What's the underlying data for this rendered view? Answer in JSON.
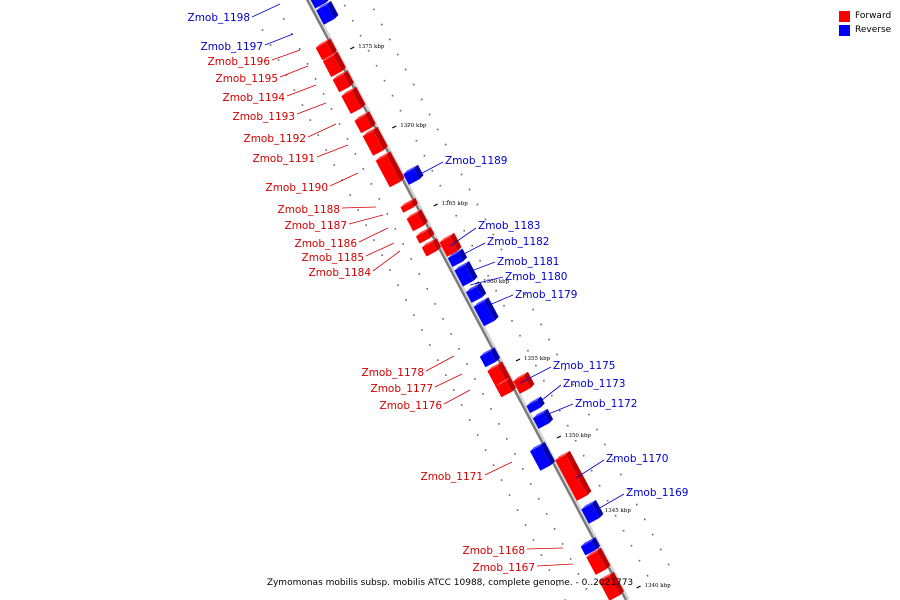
{
  "legend": {
    "forward_label": "Forward",
    "reverse_label": "Reverse",
    "forward_color": "#ff0000",
    "reverse_color": "#0000ff"
  },
  "footer": "Zymomonas mobilis subsp. mobilis ATCC 10988, complete genome. - 0..2021773",
  "ticks": [
    "1375 kbp",
    "1370 kbp",
    "1365 kbp",
    "1360 kbp",
    "1355 kbp",
    "1350 kbp",
    "1345 kbp",
    "1340 kbp"
  ],
  "genes": [
    {
      "name": "Zmob_1198",
      "strand": "reverse"
    },
    {
      "name": "Zmob_1197",
      "strand": "reverse"
    },
    {
      "name": "Zmob_1196",
      "strand": "forward"
    },
    {
      "name": "Zmob_1195",
      "strand": "forward"
    },
    {
      "name": "Zmob_1194",
      "strand": "forward"
    },
    {
      "name": "Zmob_1193",
      "strand": "forward"
    },
    {
      "name": "Zmob_1192",
      "strand": "forward"
    },
    {
      "name": "Zmob_1191",
      "strand": "forward"
    },
    {
      "name": "Zmob_1190",
      "strand": "forward"
    },
    {
      "name": "Zmob_1189",
      "strand": "reverse"
    },
    {
      "name": "Zmob_1188",
      "strand": "forward"
    },
    {
      "name": "Zmob_1187",
      "strand": "forward"
    },
    {
      "name": "Zmob_1186",
      "strand": "forward"
    },
    {
      "name": "Zmob_1185",
      "strand": "forward"
    },
    {
      "name": "Zmob_1184",
      "strand": "forward"
    },
    {
      "name": "Zmob_1183",
      "strand": "reverse"
    },
    {
      "name": "Zmob_1182",
      "strand": "reverse"
    },
    {
      "name": "Zmob_1181",
      "strand": "reverse"
    },
    {
      "name": "Zmob_1180",
      "strand": "reverse"
    },
    {
      "name": "Zmob_1179",
      "strand": "reverse"
    },
    {
      "name": "Zmob_1178",
      "strand": "forward"
    },
    {
      "name": "Zmob_1177",
      "strand": "forward"
    },
    {
      "name": "Zmob_1176",
      "strand": "forward"
    },
    {
      "name": "Zmob_1175",
      "strand": "reverse"
    },
    {
      "name": "Zmob_1173",
      "strand": "reverse"
    },
    {
      "name": "Zmob_1172",
      "strand": "reverse"
    },
    {
      "name": "Zmob_1171",
      "strand": "forward"
    },
    {
      "name": "Zmob_1170",
      "strand": "reverse"
    },
    {
      "name": "Zmob_1169",
      "strand": "reverse"
    },
    {
      "name": "Zmob_1168",
      "strand": "forward"
    },
    {
      "name": "Zmob_1167",
      "strand": "forward"
    }
  ]
}
